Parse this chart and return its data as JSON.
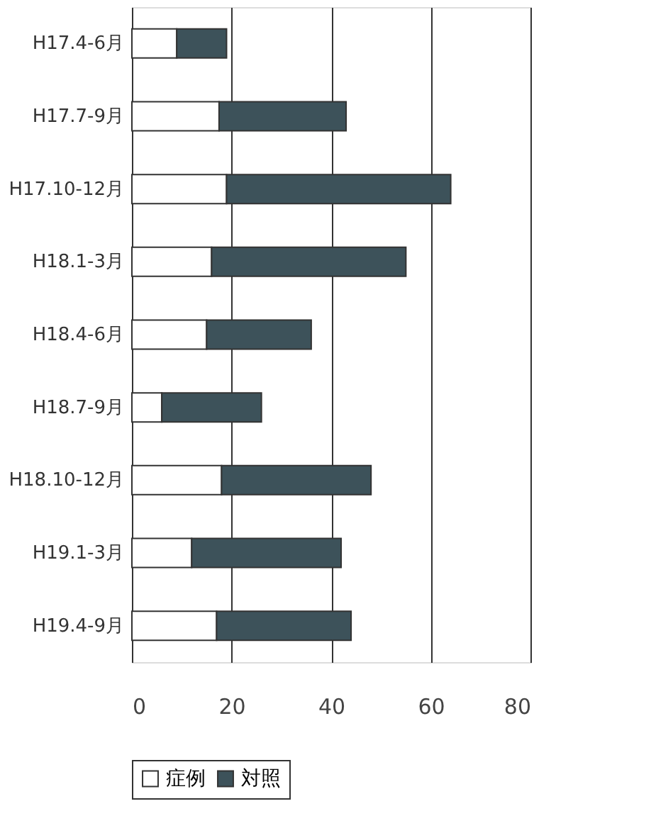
{
  "chart_data": {
    "type": "bar",
    "orientation": "horizontal",
    "stacked": true,
    "categories": [
      "H17.4-6月",
      "H17.7-9月",
      "H17.10-12月",
      "H18.1-3月",
      "H18.4-6月",
      "H18.7-9月",
      "H18.10-12月",
      "H19.1-3月",
      "H19.4-9月"
    ],
    "series": [
      {
        "name": "症例",
        "color": "#ffffff",
        "values": [
          9,
          17.5,
          19,
          16,
          15,
          6,
          18,
          12,
          17
        ]
      },
      {
        "name": "対照",
        "color": "#3d525a",
        "values": [
          10,
          25.5,
          45,
          39,
          21,
          20,
          30,
          30,
          27
        ]
      }
    ],
    "xlim": [
      0,
      80
    ],
    "xticks": [
      0,
      20,
      40,
      60,
      80
    ],
    "grid": "x",
    "legend": "bottom"
  }
}
